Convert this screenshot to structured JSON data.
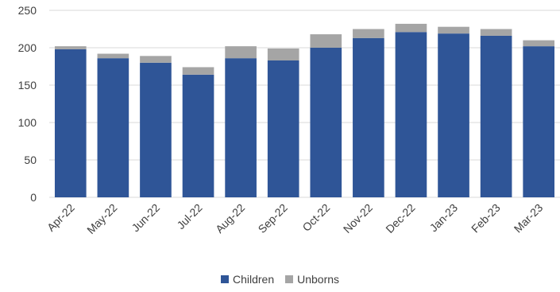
{
  "chart_data": {
    "type": "bar",
    "stacked": true,
    "categories": [
      "Apr-22",
      "May-22",
      "Jun-22",
      "Jul-22",
      "Aug-22",
      "Sep-22",
      "Oct-22",
      "Nov-22",
      "Dec-22",
      "Jan-23",
      "Feb-23",
      "Mar-23"
    ],
    "series": [
      {
        "name": "Children",
        "color": "#2F5597",
        "values": [
          198,
          186,
          180,
          164,
          186,
          183,
          200,
          213,
          221,
          219,
          216,
          202
        ]
      },
      {
        "name": "Unborns",
        "color": "#A5A5A5",
        "values": [
          4,
          6,
          9,
          10,
          16,
          16,
          18,
          12,
          11,
          9,
          9,
          8
        ]
      }
    ],
    "yticks": [
      0,
      50,
      100,
      150,
      200,
      250
    ],
    "ylim": [
      0,
      250
    ],
    "grid": true,
    "legend_position": "bottom"
  }
}
